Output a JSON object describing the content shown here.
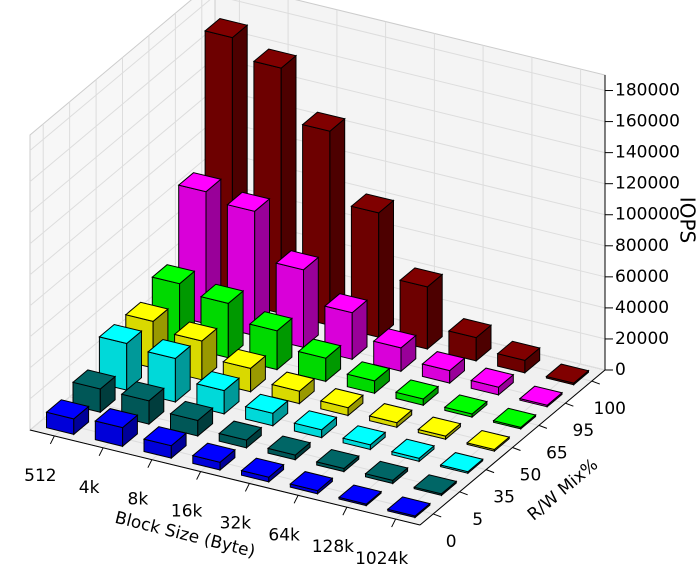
{
  "chart_data": {
    "type": "bar3d",
    "xlabel": "Block Size (Byte)",
    "ylabel": "R/W Mix%",
    "zlabel": "IOPS",
    "categories": [
      "512",
      "4k",
      "8k",
      "16k",
      "32k",
      "64k",
      "128k",
      "1024k"
    ],
    "series": [
      {
        "name": "0",
        "color": "#0000ff",
        "values": [
          10000,
          12000,
          8000,
          5000,
          3000,
          2000,
          1000,
          1000
        ]
      },
      {
        "name": "5",
        "color": "#006666",
        "values": [
          15000,
          15000,
          10000,
          5000,
          3000,
          2000,
          2000,
          1000
        ]
      },
      {
        "name": "35",
        "color": "#00ffff",
        "values": [
          30000,
          28000,
          15000,
          8000,
          5000,
          3000,
          2000,
          1000
        ]
      },
      {
        "name": "50",
        "color": "#ffff00",
        "values": [
          30000,
          25000,
          15000,
          8000,
          5000,
          3000,
          2000,
          1000
        ]
      },
      {
        "name": "65",
        "color": "#00ff00",
        "values": [
          40000,
          35000,
          25000,
          15000,
          8000,
          4000,
          2000,
          1000
        ]
      },
      {
        "name": "95",
        "color": "#ff00ff",
        "values": [
          85000,
          80000,
          50000,
          30000,
          15000,
          8000,
          5000,
          1000
        ]
      },
      {
        "name": "100",
        "color": "#800000",
        "values": [
          170000,
          158000,
          125000,
          80000,
          40000,
          15000,
          8000,
          1000
        ]
      }
    ],
    "zlim": [
      0,
      190000
    ],
    "zticks": [
      0,
      20000,
      40000,
      60000,
      80000,
      100000,
      120000,
      140000,
      160000,
      180000
    ],
    "grid": true
  }
}
